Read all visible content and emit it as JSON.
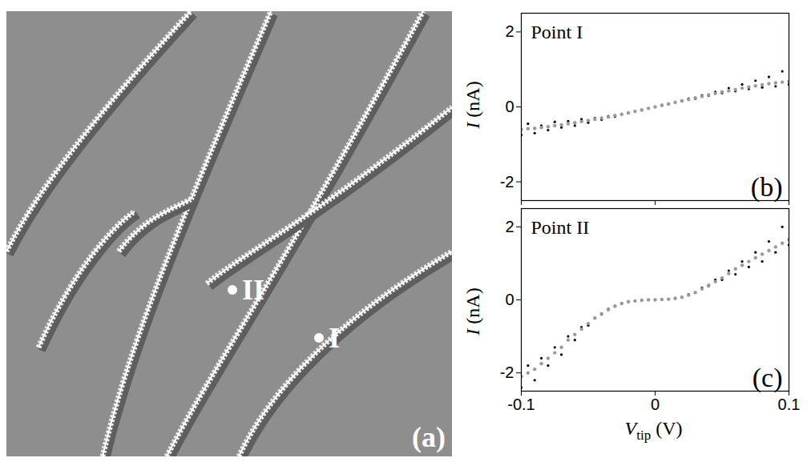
{
  "image_panel": {
    "label": "(a)",
    "points": [
      {
        "label": "I"
      },
      {
        "label": "II"
      }
    ]
  },
  "chart_data": [
    {
      "type": "scatter",
      "panel_label": "(b)",
      "annotation": "Point I",
      "y_label": {
        "symbol": "I",
        "unit": "(nA)"
      },
      "tick_labels": "y",
      "xlim": [
        -0.1,
        0.1
      ],
      "xticks": [
        -0.1,
        0,
        0.1
      ],
      "ylim": [
        -2.5,
        2.5
      ],
      "yticks": [
        -2,
        0,
        2
      ],
      "x": [
        -0.1,
        -0.095,
        -0.09,
        -0.085,
        -0.08,
        -0.075,
        -0.07,
        -0.065,
        -0.06,
        -0.055,
        -0.05,
        -0.045,
        -0.04,
        -0.035,
        -0.03,
        -0.025,
        -0.02,
        -0.015,
        -0.01,
        -0.005,
        0,
        0.005,
        0.01,
        0.015,
        0.02,
        0.025,
        0.03,
        0.035,
        0.04,
        0.045,
        0.05,
        0.055,
        0.06,
        0.065,
        0.07,
        0.075,
        0.08,
        0.085,
        0.09,
        0.095,
        0.1
      ],
      "series": [
        {
          "color": "#000000",
          "marker": "dot",
          "values": [
            -0.75,
            -0.45,
            -0.7,
            -0.5,
            -0.62,
            -0.4,
            -0.55,
            -0.38,
            -0.5,
            -0.33,
            -0.42,
            -0.3,
            -0.34,
            -0.25,
            -0.26,
            -0.19,
            -0.17,
            -0.12,
            -0.09,
            -0.04,
            0,
            0.05,
            0.07,
            0.13,
            0.15,
            0.22,
            0.22,
            0.31,
            0.3,
            0.4,
            0.37,
            0.5,
            0.42,
            0.6,
            0.48,
            0.7,
            0.52,
            0.8,
            0.55,
            0.95,
            0.6
          ]
        },
        {
          "color": "#9a9a9a",
          "marker": "dot",
          "values": [
            -0.6,
            -0.58,
            -0.57,
            -0.55,
            -0.53,
            -0.5,
            -0.48,
            -0.45,
            -0.42,
            -0.39,
            -0.36,
            -0.33,
            -0.3,
            -0.27,
            -0.23,
            -0.2,
            -0.16,
            -0.12,
            -0.08,
            -0.04,
            0,
            0.04,
            0.08,
            0.12,
            0.16,
            0.2,
            0.24,
            0.28,
            0.32,
            0.36,
            0.4,
            0.43,
            0.46,
            0.5,
            0.53,
            0.56,
            0.59,
            0.62,
            0.64,
            0.66,
            0.68
          ]
        }
      ]
    },
    {
      "type": "scatter",
      "panel_label": "(c)",
      "annotation": "Point II",
      "y_label": {
        "symbol": "I",
        "unit": "(nA)"
      },
      "x_label": {
        "symbol": "V",
        "subscript": "tip",
        "unit": "(V)"
      },
      "xlim": [
        -0.1,
        0.1
      ],
      "xticks": [
        -0.1,
        0,
        0.1
      ],
      "ylim": [
        -2.5,
        2.5
      ],
      "yticks": [
        -2,
        0,
        2
      ],
      "x": [
        -0.1,
        -0.095,
        -0.09,
        -0.085,
        -0.08,
        -0.075,
        -0.07,
        -0.065,
        -0.06,
        -0.055,
        -0.05,
        -0.045,
        -0.04,
        -0.035,
        -0.03,
        -0.025,
        -0.02,
        -0.015,
        -0.01,
        -0.005,
        0,
        0.005,
        0.01,
        0.015,
        0.02,
        0.025,
        0.03,
        0.035,
        0.04,
        0.045,
        0.05,
        0.055,
        0.06,
        0.065,
        0.07,
        0.075,
        0.08,
        0.085,
        0.09,
        0.095,
        0.1
      ],
      "series": [
        {
          "color": "#000000",
          "marker": "dot",
          "values": [
            -2.4,
            -1.8,
            -2.2,
            -1.6,
            -1.8,
            -1.3,
            -1.5,
            -1.0,
            -1.1,
            -0.75,
            -0.7,
            -0.5,
            -0.4,
            -0.25,
            -0.18,
            -0.1,
            -0.05,
            -0.03,
            -0.01,
            0,
            0,
            0.01,
            0.02,
            0.05,
            0.07,
            0.15,
            0.2,
            0.33,
            0.38,
            0.55,
            0.55,
            0.8,
            0.7,
            1.05,
            0.9,
            1.3,
            1.05,
            1.6,
            1.3,
            2.0,
            1.5
          ]
        },
        {
          "color": "#9a9a9a",
          "marker": "dot",
          "values": [
            -2.1,
            -2.0,
            -1.9,
            -1.75,
            -1.6,
            -1.45,
            -1.3,
            -1.1,
            -0.95,
            -0.8,
            -0.65,
            -0.5,
            -0.38,
            -0.27,
            -0.17,
            -0.1,
            -0.05,
            -0.03,
            -0.01,
            0,
            0,
            0.01,
            0.02,
            0.04,
            0.07,
            0.13,
            0.2,
            0.3,
            0.4,
            0.5,
            0.6,
            0.72,
            0.85,
            0.95,
            1.05,
            1.15,
            1.25,
            1.35,
            1.45,
            1.55,
            1.65
          ]
        }
      ]
    }
  ]
}
